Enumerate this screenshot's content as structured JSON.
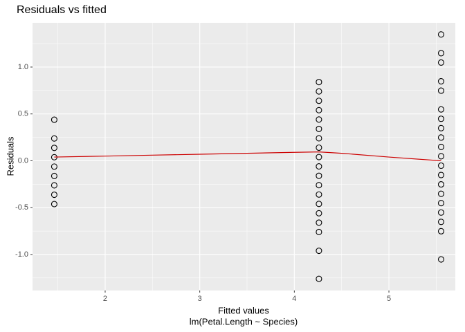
{
  "chart_data": {
    "type": "scatter",
    "title": "Residuals vs fitted",
    "x_label": "Fitted values",
    "x_sublabel": "lm(Petal.Length ~ Species)",
    "y_label": "Residuals",
    "xlim": [
      1.232,
      5.702
    ],
    "ylim": [
      -1.384,
      1.472
    ],
    "xticks": [
      2,
      3,
      4,
      5
    ],
    "yticks": [
      {
        "value": -1,
        "label": "-1.0"
      },
      -0.5,
      {
        "value": 0,
        "label": "0.0"
      },
      0.5,
      {
        "value": 1,
        "label": "1.0"
      }
    ],
    "grid": true,
    "point_color": "#000000",
    "points": {
      "x": [
        1.462,
        1.462,
        1.462,
        1.462,
        1.462,
        1.462,
        1.462,
        1.462,
        1.462,
        4.26,
        4.26,
        4.26,
        4.26,
        4.26,
        4.26,
        4.26,
        4.26,
        4.26,
        4.26,
        4.26,
        4.26,
        4.26,
        4.26,
        4.26,
        4.26,
        4.26,
        4.26,
        4.26,
        5.552,
        5.552,
        5.552,
        5.552,
        5.552,
        5.552,
        5.552,
        5.552,
        5.552,
        5.552,
        5.552,
        5.552,
        5.552,
        5.552,
        5.552,
        5.552,
        5.552,
        5.552,
        5.552,
        5.552
      ],
      "y": [
        0.438,
        0.238,
        0.138,
        0.038,
        -0.062,
        -0.162,
        -0.262,
        -0.362,
        -0.462,
        0.84,
        0.74,
        0.64,
        0.54,
        0.44,
        0.34,
        0.24,
        0.14,
        0.04,
        -0.06,
        -0.16,
        -0.26,
        -0.36,
        -0.46,
        -0.56,
        -0.66,
        -0.76,
        -0.96,
        -1.26,
        1.348,
        1.148,
        1.048,
        0.848,
        0.748,
        0.548,
        0.448,
        0.348,
        0.248,
        0.148,
        0.048,
        -0.052,
        -0.152,
        -0.252,
        -0.352,
        -0.452,
        -0.552,
        -0.652,
        -0.752,
        -1.052
      ]
    },
    "smooth": {
      "color": "#cc0000",
      "x": [
        1.462,
        2,
        2.5,
        3,
        3.5,
        4,
        4.26,
        4.5,
        5,
        5.552
      ],
      "y": [
        0.04,
        0.05,
        0.06,
        0.07,
        0.08,
        0.09,
        0.095,
        0.08,
        0.04,
        0.0
      ]
    }
  }
}
